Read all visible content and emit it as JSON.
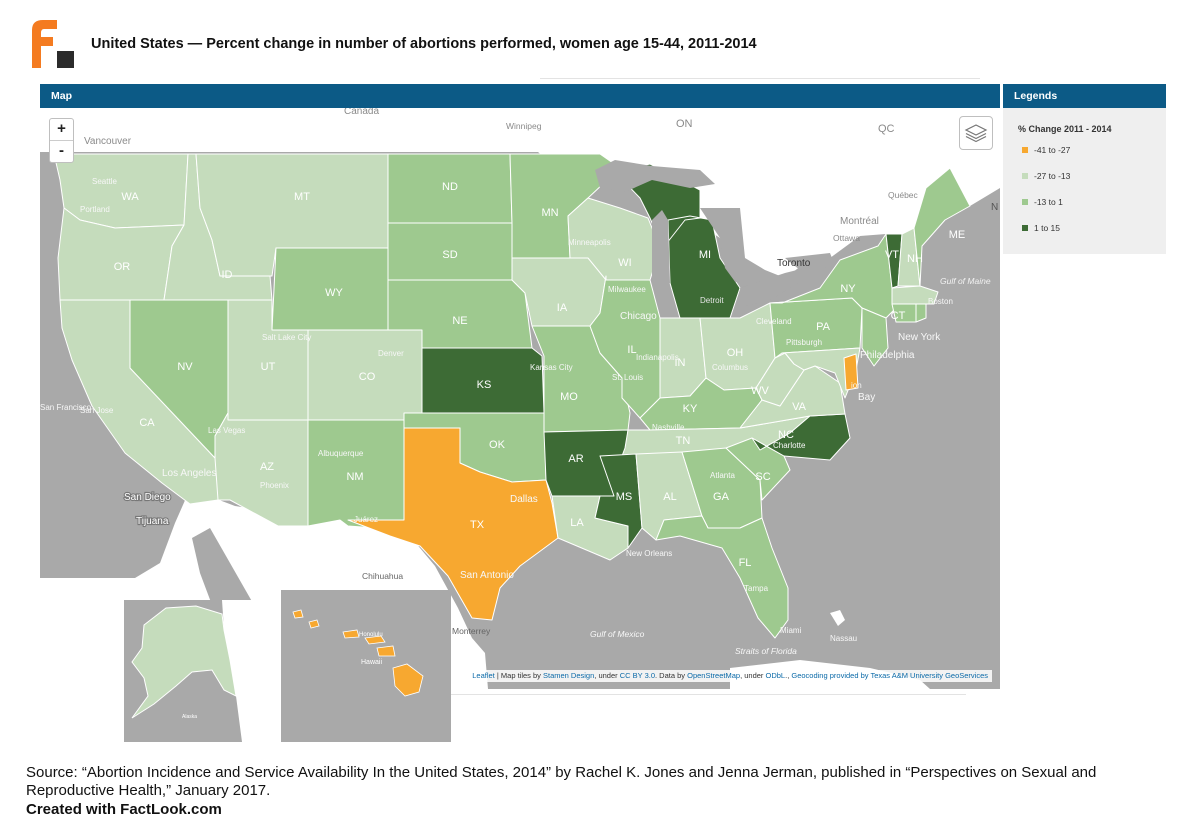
{
  "page": {
    "title": "United States — Percent change in number of abortions performed, women age 15-44, 2011-2014"
  },
  "map_panel": {
    "header": "Map",
    "zoom_in": "+",
    "zoom_out": "-",
    "layers_icon": "layers-icon",
    "place_labels": {
      "canada": "Canada",
      "vancouver": "Vancouver",
      "winnipeg": "Winnipeg",
      "on": "ON",
      "qc": "QC",
      "quebec": "Québec",
      "montreal": "Montréal",
      "ottawa": "Ottawa",
      "toronto": "Toronto",
      "n_edge": "N",
      "gulf_of_maine": "Gulf of Maine",
      "boston": "Boston",
      "new_york": "New York",
      "philadelphia": "Philadelphia",
      "san_francisco": "San Francisco",
      "san_jose": "San Jose",
      "los_angeles": "Los Angeles",
      "san_diego": "San Diego",
      "tijuana": "Tijuana",
      "chihuahua": "Chihuahua",
      "monterrey": "Monterrey",
      "gulf_of_mexico": "Gulf of Mexico",
      "straits_of_florida": "Straits of Florida",
      "nassau": "Nassau",
      "miami": "Miami",
      "tampa": "Tampa",
      "new_orleans": "New Orleans",
      "dallas": "Dallas",
      "san_antonio": "San Antonio",
      "atlanta": "Atlanta",
      "charlotte": "Charlotte",
      "nashville": "Nashville",
      "st_louis": "St. Louis",
      "kansas_city": "Kansas City",
      "chicago": "Chicago",
      "milwaukee": "Milwaukee",
      "minneapolis": "Minneapolis",
      "detroit": "Detroit",
      "cleveland": "Cleveland",
      "pittsburgh": "Pittsburgh",
      "indianapolis": "Indianapolis",
      "columbus": "Columbus",
      "denver": "Denver",
      "salt_lake_city": "Salt Lake City",
      "albuquerque": "Albuquerque",
      "phoenix": "Phoenix",
      "las_vegas": "Las Vegas",
      "seattle": "Seattle",
      "portland": "Portland",
      "bay": "Bay",
      "ion": "ion",
      "juarez": "Juárez",
      "hawaii": "Hawaii",
      "honolulu": "Honolulu",
      "alaska": "Alaska"
    },
    "states": [
      {
        "abbr": "WA",
        "category": "-27 to -13"
      },
      {
        "abbr": "OR",
        "category": "-27 to -13"
      },
      {
        "abbr": "CA",
        "category": "-27 to -13"
      },
      {
        "abbr": "NV",
        "category": "-13 to 1"
      },
      {
        "abbr": "ID",
        "category": "-27 to -13"
      },
      {
        "abbr": "MT",
        "category": "-27 to -13"
      },
      {
        "abbr": "WY",
        "category": "-13 to 1"
      },
      {
        "abbr": "UT",
        "category": "-27 to -13"
      },
      {
        "abbr": "AZ",
        "category": "-27 to -13"
      },
      {
        "abbr": "CO",
        "category": "-27 to -13"
      },
      {
        "abbr": "NM",
        "category": "-13 to 1"
      },
      {
        "abbr": "ND",
        "category": "-13 to 1"
      },
      {
        "abbr": "SD",
        "category": "-13 to 1"
      },
      {
        "abbr": "NE",
        "category": "-13 to 1"
      },
      {
        "abbr": "KS",
        "category": "1 to 15"
      },
      {
        "abbr": "OK",
        "category": "-13 to 1"
      },
      {
        "abbr": "TX",
        "category": "-41 to -27"
      },
      {
        "abbr": "MN",
        "category": "-13 to 1"
      },
      {
        "abbr": "IA",
        "category": "-27 to -13"
      },
      {
        "abbr": "MO",
        "category": "-13 to 1"
      },
      {
        "abbr": "AR",
        "category": "1 to 15"
      },
      {
        "abbr": "LA",
        "category": "-27 to -13"
      },
      {
        "abbr": "WI",
        "category": "-27 to -13"
      },
      {
        "abbr": "IL",
        "category": "-13 to 1"
      },
      {
        "abbr": "MI",
        "category": "1 to 15"
      },
      {
        "abbr": "IN",
        "category": "-27 to -13"
      },
      {
        "abbr": "OH",
        "category": "-27 to -13"
      },
      {
        "abbr": "KY",
        "category": "-13 to 1"
      },
      {
        "abbr": "TN",
        "category": "-27 to -13"
      },
      {
        "abbr": "MS",
        "category": "1 to 15"
      },
      {
        "abbr": "AL",
        "category": "-27 to -13"
      },
      {
        "abbr": "GA",
        "category": "-13 to 1"
      },
      {
        "abbr": "FL",
        "category": "-13 to 1"
      },
      {
        "abbr": "SC",
        "category": "-13 to 1"
      },
      {
        "abbr": "NC",
        "category": "1 to 15"
      },
      {
        "abbr": "VA",
        "category": "-27 to -13"
      },
      {
        "abbr": "WV",
        "category": "-27 to -13"
      },
      {
        "abbr": "PA",
        "category": "-13 to 1"
      },
      {
        "abbr": "NY",
        "category": "-13 to 1"
      },
      {
        "abbr": "VT",
        "category": "1 to 15"
      },
      {
        "abbr": "NH",
        "category": "-27 to -13"
      },
      {
        "abbr": "ME",
        "category": "-13 to 1"
      },
      {
        "abbr": "MA",
        "category": "-27 to -13"
      },
      {
        "abbr": "CT",
        "category": "-13 to 1"
      },
      {
        "abbr": "RI",
        "category": "-13 to 1"
      },
      {
        "abbr": "NJ",
        "category": "-13 to 1"
      },
      {
        "abbr": "DE",
        "category": "-41 to -27"
      },
      {
        "abbr": "MD",
        "category": "-27 to -13"
      },
      {
        "abbr": "AK",
        "category": "-27 to -13"
      },
      {
        "abbr": "HI",
        "category": "-41 to -27"
      }
    ],
    "attribution": {
      "leaflet": "Leaflet",
      "text1": " | Map tiles by ",
      "stamen": "Stamen Design",
      "text2": ", under ",
      "ccby": "CC BY 3.0",
      "text3": ". Data by ",
      "osm": "OpenStreetMap",
      "text4": ", under ",
      "odbl": "ODbL",
      "text5": "., ",
      "geocoding": "Geocoding provided by Texas A&M University GeoServices"
    }
  },
  "legend": {
    "header": "Legends",
    "title": "% Change 2011 - 2014",
    "items": [
      {
        "label": "-41 to -27",
        "color": "#f7a830"
      },
      {
        "label": "-27 to -13",
        "color": "#c5dcbc"
      },
      {
        "label": "-13 to 1",
        "color": "#9ec98f"
      },
      {
        "label": "1 to 15",
        "color": "#3d6b35"
      }
    ]
  },
  "colors": {
    "header_bg": "#0c5a86",
    "logo_orange": "#f47b20",
    "logo_dark": "#2b2b2b",
    "land_outside": "#ffffff",
    "water": "#a9a9a9"
  },
  "footer": {
    "source": "Source: “Abortion Incidence and Service Availability In the United States, 2014” by Rachel K. Jones and Jenna Jerman, published in “Perspectives on Sexual and Reproductive Health,” January 2017.",
    "credit": "Created with FactLook.com"
  }
}
